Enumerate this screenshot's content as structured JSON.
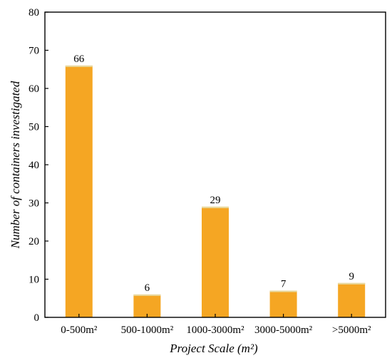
{
  "chart_data": {
    "type": "bar",
    "categories": [
      "0-500m²",
      "500-1000m²",
      "1000-3000m²",
      "3000-5000m²",
      ">5000m²"
    ],
    "values": [
      66,
      6,
      29,
      7,
      9
    ],
    "data_labels": [
      "66",
      "6",
      "29",
      "7",
      "9"
    ],
    "xlabel": "Project Scale (m²)",
    "ylabel": "Number of containers investigated",
    "ylim": [
      0,
      80
    ],
    "yticks": [
      0,
      10,
      20,
      30,
      40,
      50,
      60,
      70,
      80
    ],
    "grid": false,
    "bar_color": "#F5A623",
    "bar_top_color": "#E7D9A0"
  }
}
